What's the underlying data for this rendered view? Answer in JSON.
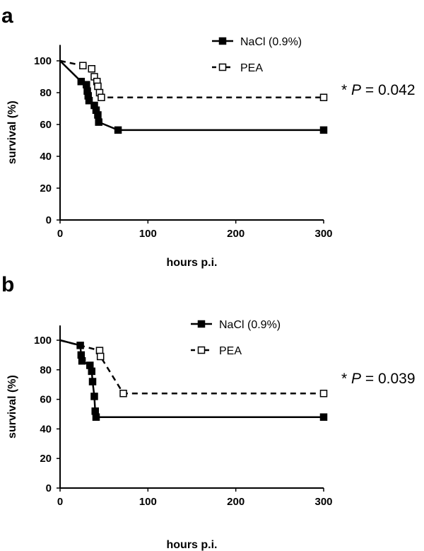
{
  "chart_data": [
    {
      "type": "line",
      "panel_label": "a",
      "xlabel": "hours p.i.",
      "ylabel": "survival (%)",
      "xlim": [
        0,
        300
      ],
      "ylim": [
        0,
        110
      ],
      "x_ticks": [
        0,
        100,
        200,
        300
      ],
      "y_ticks": [
        0,
        20,
        40,
        60,
        80,
        100
      ],
      "legend": "top-right",
      "annotation": "* P = 0.042",
      "series": [
        {
          "name": "NaCl (0.9%)",
          "style": "solid",
          "marker": "filled-square",
          "x": [
            0,
            24,
            30,
            31,
            32,
            33,
            39,
            41,
            43,
            44,
            66,
            300
          ],
          "y": [
            100,
            87,
            85,
            81,
            78,
            75,
            72,
            69,
            66,
            61.5,
            56.5,
            56.5
          ]
        },
        {
          "name": "PEA",
          "style": "dashed",
          "marker": "open-square",
          "x": [
            0,
            26,
            36,
            39,
            42,
            43,
            45,
            47,
            300
          ],
          "y": [
            100,
            97,
            95,
            90,
            87,
            84,
            80,
            77,
            77
          ]
        }
      ]
    },
    {
      "type": "line",
      "panel_label": "b",
      "xlabel": "hours p.i.",
      "ylabel": "survival (%)",
      "xlim": [
        0,
        300
      ],
      "ylim": [
        0,
        110
      ],
      "x_ticks": [
        0,
        100,
        200,
        300
      ],
      "y_ticks": [
        0,
        20,
        40,
        60,
        80,
        100
      ],
      "legend": "top-right",
      "annotation": "* P = 0.039",
      "series": [
        {
          "name": "NaCl (0.9%)",
          "style": "solid",
          "marker": "filled-square",
          "x": [
            0,
            23,
            24,
            25,
            34,
            36,
            37,
            39,
            40,
            41,
            300
          ],
          "y": [
            100,
            96.5,
            90,
            86,
            83,
            79,
            72,
            62,
            52,
            48,
            48
          ]
        },
        {
          "name": "PEA",
          "style": "dashed",
          "marker": "open-square",
          "x": [
            0,
            45,
            46,
            72,
            300
          ],
          "y": [
            100,
            93,
            89,
            64,
            64
          ]
        }
      ]
    }
  ]
}
